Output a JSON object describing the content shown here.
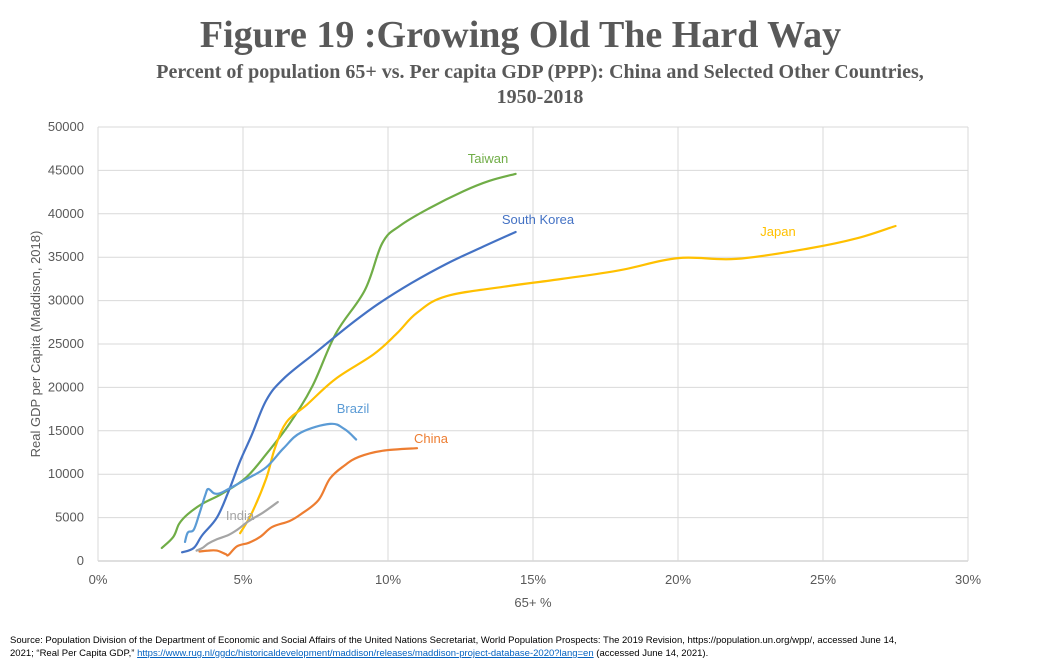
{
  "chart_data": {
    "type": "line",
    "title": "Figure 19 :Growing Old The Hard Way",
    "subtitle": "Percent of population 65+ vs. Per capita GDP (PPP): China and Selected Other Countries, 1950-2018",
    "xlabel": "65+ %",
    "ylabel": "Real GDP per Capita (Maddison, 2018)",
    "xlim": [
      0,
      0.3
    ],
    "ylim": [
      0,
      50000
    ],
    "x_ticks": [
      0,
      0.05,
      0.1,
      0.15,
      0.2,
      0.25,
      0.3
    ],
    "x_tick_labels": [
      "0%",
      "5%",
      "10%",
      "15%",
      "20%",
      "25%",
      "30%"
    ],
    "y_ticks": [
      0,
      5000,
      10000,
      15000,
      20000,
      25000,
      30000,
      35000,
      40000,
      45000,
      50000
    ],
    "y_tick_labels": [
      "0",
      "5000",
      "10000",
      "15000",
      "20000",
      "25000",
      "30000",
      "35000",
      "40000",
      "45000",
      "50000"
    ],
    "grid": true,
    "legend": "inline labels",
    "series": [
      {
        "name": "Taiwan",
        "color": "#70ad47",
        "points": [
          [
            0.022,
            1500
          ],
          [
            0.026,
            2800
          ],
          [
            0.028,
            4300
          ],
          [
            0.031,
            5400
          ],
          [
            0.036,
            6600
          ],
          [
            0.043,
            7800
          ],
          [
            0.051,
            9600
          ],
          [
            0.058,
            12300
          ],
          [
            0.066,
            15800
          ],
          [
            0.074,
            20200
          ],
          [
            0.082,
            26200
          ],
          [
            0.092,
            31200
          ],
          [
            0.098,
            36600
          ],
          [
            0.104,
            38600
          ],
          [
            0.114,
            40600
          ],
          [
            0.126,
            42600
          ],
          [
            0.135,
            43800
          ],
          [
            0.144,
            44600
          ]
        ]
      },
      {
        "name": "South Korea",
        "color": "#4472c4",
        "points": [
          [
            0.029,
            1000
          ],
          [
            0.033,
            1500
          ],
          [
            0.036,
            3000
          ],
          [
            0.041,
            5000
          ],
          [
            0.045,
            8000
          ],
          [
            0.049,
            11500
          ],
          [
            0.053,
            14500
          ],
          [
            0.058,
            18500
          ],
          [
            0.064,
            21000
          ],
          [
            0.075,
            24000
          ],
          [
            0.088,
            27500
          ],
          [
            0.097,
            29700
          ],
          [
            0.108,
            32000
          ],
          [
            0.12,
            34200
          ],
          [
            0.132,
            36100
          ],
          [
            0.144,
            37900
          ]
        ]
      },
      {
        "name": "Japan",
        "color": "#ffc000",
        "points": [
          [
            0.049,
            3200
          ],
          [
            0.053,
            5500
          ],
          [
            0.058,
            9500
          ],
          [
            0.061,
            13000
          ],
          [
            0.065,
            16000
          ],
          [
            0.072,
            18000
          ],
          [
            0.082,
            21000
          ],
          [
            0.095,
            23800
          ],
          [
            0.103,
            26200
          ],
          [
            0.11,
            28600
          ],
          [
            0.12,
            30500
          ],
          [
            0.14,
            31600
          ],
          [
            0.16,
            32500
          ],
          [
            0.18,
            33500
          ],
          [
            0.2,
            34900
          ],
          [
            0.22,
            34800
          ],
          [
            0.245,
            36000
          ],
          [
            0.262,
            37200
          ],
          [
            0.275,
            38600
          ]
        ]
      },
      {
        "name": "Brazil",
        "color": "#5b9bd5",
        "points": [
          [
            0.03,
            2200
          ],
          [
            0.031,
            3300
          ],
          [
            0.033,
            3600
          ],
          [
            0.035,
            5500
          ],
          [
            0.037,
            7600
          ],
          [
            0.038,
            8300
          ],
          [
            0.04,
            7800
          ],
          [
            0.042,
            7800
          ],
          [
            0.045,
            8300
          ],
          [
            0.051,
            9400
          ],
          [
            0.058,
            10800
          ],
          [
            0.064,
            13000
          ],
          [
            0.07,
            14800
          ],
          [
            0.08,
            15800
          ],
          [
            0.085,
            15200
          ],
          [
            0.089,
            14000
          ]
        ]
      },
      {
        "name": "China",
        "color": "#ed7d31",
        "points": [
          [
            0.035,
            1100
          ],
          [
            0.038,
            1200
          ],
          [
            0.041,
            1200
          ],
          [
            0.044,
            800
          ],
          [
            0.045,
            700
          ],
          [
            0.048,
            1700
          ],
          [
            0.052,
            2100
          ],
          [
            0.056,
            2800
          ],
          [
            0.06,
            3900
          ],
          [
            0.066,
            4600
          ],
          [
            0.07,
            5400
          ],
          [
            0.076,
            7000
          ],
          [
            0.08,
            9500
          ],
          [
            0.085,
            11000
          ],
          [
            0.09,
            12000
          ],
          [
            0.098,
            12700
          ],
          [
            0.11,
            13000
          ]
        ]
      },
      {
        "name": "India",
        "color": "#a5a5a5",
        "points": [
          [
            0.034,
            1200
          ],
          [
            0.036,
            1500
          ],
          [
            0.038,
            2000
          ],
          [
            0.041,
            2500
          ],
          [
            0.045,
            3000
          ],
          [
            0.048,
            3600
          ],
          [
            0.052,
            4600
          ],
          [
            0.057,
            5600
          ],
          [
            0.062,
            6800
          ]
        ]
      }
    ]
  },
  "source": {
    "text_1": "Source: Population Division of the Department of Economic and Social Affairs of the United Nations Secretariat, World Population Prospects: The 2019 Revision, https://population.un.org/wpp/, accessed June 14,",
    "text_2": "2021; “Real Per Capita GDP,”",
    "link": "https://www.rug.nl/ggdc/historicaldevelopment/maddison/releases/maddison-project-database-2020?lang=en",
    "text_3": "(accessed June 14, 2021)."
  }
}
